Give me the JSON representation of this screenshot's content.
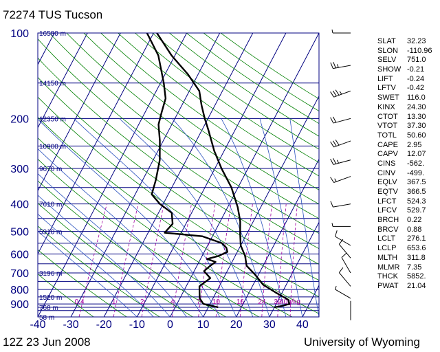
{
  "header": {
    "title": "72274 TUS Tucson"
  },
  "footer": {
    "timestamp": "12Z 23 Jun 2008",
    "source": "University of Wyoming"
  },
  "indices": [
    {
      "key": "SLAT",
      "value": "32.23"
    },
    {
      "key": "SLON",
      "value": "-110.96"
    },
    {
      "key": "SELV",
      "value": "751.0"
    },
    {
      "key": "SHOW",
      "value": "-0.21"
    },
    {
      "key": "LIFT",
      "value": "-0.24"
    },
    {
      "key": "LFTV",
      "value": "-0.42"
    },
    {
      "key": "SWET",
      "value": "116.0"
    },
    {
      "key": "KINX",
      "value": "24.30"
    },
    {
      "key": "CTOT",
      "value": "13.30"
    },
    {
      "key": "VTOT",
      "value": "37.30"
    },
    {
      "key": "TOTL",
      "value": "50.60"
    },
    {
      "key": "CAPE",
      "value": "2.95"
    },
    {
      "key": "CAPV",
      "value": "12.07"
    },
    {
      "key": "CINS",
      "value": "-562."
    },
    {
      "key": "CINV",
      "value": "-499."
    },
    {
      "key": "EQLV",
      "value": "367.5"
    },
    {
      "key": "EQTV",
      "value": "366.5"
    },
    {
      "key": "LFCT",
      "value": "524.3"
    },
    {
      "key": "LFCV",
      "value": "529.7"
    },
    {
      "key": "BRCH",
      "value": "0.22"
    },
    {
      "key": "BRCV",
      "value": "0.88"
    },
    {
      "key": "LCLT",
      "value": "276.1"
    },
    {
      "key": "LCLP",
      "value": "653.6"
    },
    {
      "key": "MLTH",
      "value": "311.8"
    },
    {
      "key": "MLMR",
      "value": "7.35"
    },
    {
      "key": "THCK",
      "value": "5852."
    },
    {
      "key": "PWAT",
      "value": "21.04"
    }
  ],
  "colors": {
    "isobar": "#000080",
    "isotherm": "#000080",
    "dry_adiabat": "#008000",
    "moist_adiabat": "#2a52be",
    "mixing_ratio": "#a000a0",
    "sounding": "#000000",
    "axis_text": "#000080"
  },
  "chart_data": {
    "type": "line",
    "title": "72274 TUS Tucson",
    "xlim": [
      -40,
      45
    ],
    "ylim": [
      1000,
      100
    ],
    "y_scale": "log",
    "x_ticks": [
      "-40",
      "-30",
      "-20",
      "-10",
      "0",
      "10",
      "20",
      "30",
      "40"
    ],
    "y_ticks": [
      {
        "label": "100",
        "p": 100
      },
      {
        "label": "200",
        "p": 200
      },
      {
        "label": "300",
        "p": 300
      },
      {
        "label": "400",
        "p": 400
      },
      {
        "label": "500",
        "p": 500
      },
      {
        "label": "600",
        "p": 600
      },
      {
        "label": "700",
        "p": 700
      },
      {
        "label": "800",
        "p": 800
      },
      {
        "label": "900",
        "p": 900
      }
    ],
    "isobars": [
      100,
      150,
      200,
      250,
      300,
      350,
      400,
      450,
      500,
      550,
      600,
      650,
      700,
      750,
      800,
      850,
      900,
      925,
      950,
      1000
    ],
    "height_labels": [
      {
        "text": "16580 m",
        "p": 100
      },
      {
        "text": "14150 m",
        "p": 150
      },
      {
        "text": "12350 m",
        "p": 200
      },
      {
        "text": "10900 m",
        "p": 250
      },
      {
        "text": "9670 m",
        "p": 300
      },
      {
        "text": "7610 m",
        "p": 400
      },
      {
        "text": "5910 m",
        "p": 500
      },
      {
        "text": "3196 m",
        "p": 700
      },
      {
        "text": "1520 m",
        "p": 850
      },
      {
        "text": "768 m",
        "p": 925
      },
      {
        "text": "58 m",
        "p": 1000
      }
    ],
    "mixing_ratio_labels": [
      "0.4",
      "1",
      "2",
      "4",
      "7",
      "10",
      "16",
      "24",
      "32",
      "40g/kg"
    ],
    "mixing_ratios": [
      0.4,
      1,
      2,
      4,
      7,
      10,
      16,
      24,
      32,
      40
    ],
    "series": [
      {
        "role": "temperature",
        "points": [
          [
            30,
            925
          ],
          [
            32,
            915
          ],
          [
            34,
            900
          ],
          [
            33,
            870
          ],
          [
            28,
            820
          ],
          [
            23,
            770
          ],
          [
            19,
            710
          ],
          [
            15,
            660
          ],
          [
            13,
            610
          ],
          [
            10,
            560
          ],
          [
            8,
            510
          ],
          [
            6,
            460
          ],
          [
            3,
            410
          ],
          [
            -2,
            350
          ],
          [
            -8,
            300
          ],
          [
            -13,
            260
          ],
          [
            -18,
            220
          ],
          [
            -21,
            200
          ],
          [
            -24,
            180
          ],
          [
            -27,
            160
          ],
          [
            -33,
            140
          ],
          [
            -41,
            120
          ],
          [
            -49,
            100
          ]
        ]
      },
      {
        "role": "dewpoint",
        "points": [
          [
            13,
            925
          ],
          [
            11,
            915
          ],
          [
            8,
            900
          ],
          [
            6,
            860
          ],
          [
            5,
            820
          ],
          [
            4,
            780
          ],
          [
            6,
            730
          ],
          [
            3,
            690
          ],
          [
            4,
            660
          ],
          [
            5,
            640
          ],
          [
            2,
            625
          ],
          [
            5,
            610
          ],
          [
            7,
            590
          ],
          [
            6,
            570
          ],
          [
            4,
            550
          ],
          [
            -3,
            520
          ],
          [
            -15,
            505
          ],
          [
            -14,
            470
          ],
          [
            -16,
            430
          ],
          [
            -21,
            400
          ],
          [
            -25,
            370
          ],
          [
            -26,
            330
          ],
          [
            -28,
            280
          ],
          [
            -31,
            240
          ],
          [
            -34,
            210
          ],
          [
            -35,
            190
          ],
          [
            -36,
            170
          ],
          [
            -39,
            150
          ],
          [
            -45,
            120
          ],
          [
            -52,
            100
          ]
        ]
      }
    ],
    "winds": [
      {
        "p": 100,
        "dir": 270,
        "spd": 5
      },
      {
        "p": 130,
        "dir": 260,
        "spd": 25
      },
      {
        "p": 160,
        "dir": 250,
        "spd": 35
      },
      {
        "p": 200,
        "dir": 255,
        "spd": 20
      },
      {
        "p": 240,
        "dir": 250,
        "spd": 30
      },
      {
        "p": 280,
        "dir": 255,
        "spd": 25
      },
      {
        "p": 320,
        "dir": 250,
        "spd": 15
      },
      {
        "p": 400,
        "dir": 260,
        "spd": 10
      },
      {
        "p": 480,
        "dir": 270,
        "spd": 5
      },
      {
        "p": 560,
        "dir": 300,
        "spd": 10
      },
      {
        "p": 620,
        "dir": 320,
        "spd": 10
      },
      {
        "p": 700,
        "dir": 330,
        "spd": 10
      },
      {
        "p": 780,
        "dir": 320,
        "spd": 10
      },
      {
        "p": 860,
        "dir": 300,
        "spd": 5
      },
      {
        "p": 950,
        "dir": 0,
        "spd": 0
      }
    ]
  }
}
